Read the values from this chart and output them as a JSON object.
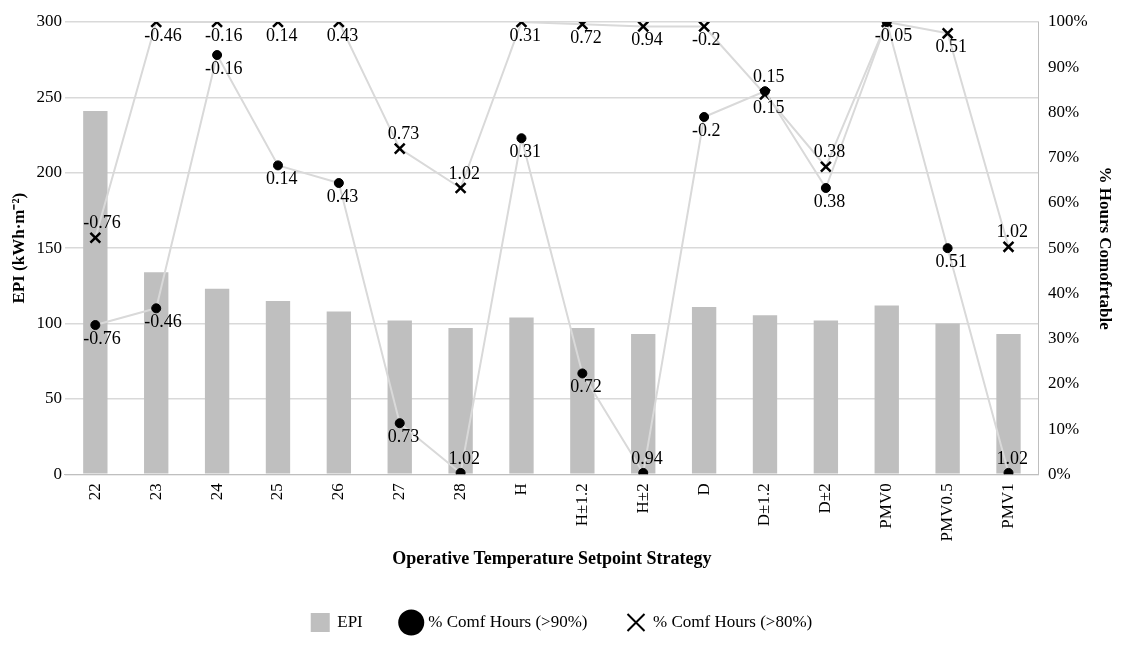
{
  "chart_data": {
    "type": "bar",
    "xlabel": "Operative Temperature Setpoint Strategy",
    "ylabel": "EPI (kWh·m⁻²)",
    "y2label": "% Hours Comofrtable",
    "categories": [
      "22",
      "23",
      "24",
      "25",
      "26",
      "27",
      "28",
      "H",
      "H±1.2",
      "H±2",
      "D",
      "D±1.2",
      "D±2",
      "PMV0",
      "PMV0.5",
      "PMV1"
    ],
    "series": [
      {
        "name": "EPI",
        "color": "#bfbfbf",
        "values": [
          241,
          134,
          123,
          115,
          108,
          102,
          97,
          104,
          97,
          93,
          111,
          105.5,
          102,
          112,
          100,
          93
        ]
      },
      {
        "name": "% Comf Hours (>90%)",
        "type": "line",
        "axis": "y2",
        "marker": "circle",
        "color": "#000000",
        "values": [
          33,
          36.7,
          92.7,
          68.3,
          64.4,
          11.3,
          0.3,
          74.3,
          22.3,
          0.3,
          79,
          84.7,
          63.3,
          100,
          50,
          0.3
        ]
      },
      {
        "name": "% Comf Hours (>80%)",
        "type": "line",
        "axis": "y2",
        "marker": "cross",
        "color": "#000000",
        "values": [
          52.3,
          100,
          100,
          100,
          100,
          72,
          63.3,
          100,
          99.5,
          99,
          99,
          84,
          68,
          100,
          97.5,
          50.3
        ]
      }
    ],
    "annotations": [
      {
        "text": "-0.76",
        "x": "22",
        "y": 99
      },
      {
        "text": "-0.46",
        "x": "23",
        "y": 110
      },
      {
        "text": "-0.16",
        "x": "24",
        "y": 278
      },
      {
        "text": "0.14",
        "x": "25",
        "y": 205
      },
      {
        "text": "0.43",
        "x": "26",
        "y": 193
      },
      {
        "text": "0.73",
        "x": "27",
        "y": 34
      },
      {
        "text": "1.02",
        "x": "28",
        "y": 1
      },
      {
        "text": "0.31",
        "x": "H",
        "y": 223
      },
      {
        "text": "0.72",
        "x": "H±1.2",
        "y": 67
      },
      {
        "text": "0.94",
        "x": "H±2",
        "y": 1
      },
      {
        "text": "-0.2",
        "x": "D",
        "y": 237
      },
      {
        "text": "0.15",
        "x": "D±1.2",
        "y": 254
      },
      {
        "text": "0.38",
        "x": "D±2",
        "y": 190
      },
      {
        "text": "0.51",
        "x": "PMV0.5",
        "y": 150
      },
      {
        "text": "1.02",
        "x": "PMV1",
        "y": 1
      },
      {
        "text": "-0.76",
        "x": "22",
        "y": 157
      },
      {
        "text": "-0.46",
        "x": "23",
        "y": 300
      },
      {
        "text": "-0.16",
        "x": "24",
        "y": 300
      },
      {
        "text": "0.14",
        "x": "25",
        "y": 300
      },
      {
        "text": "0.43",
        "x": "26",
        "y": 300
      },
      {
        "text": "0.73",
        "x": "27",
        "y": 216
      },
      {
        "text": "1.02",
        "x": "28",
        "y": 190
      },
      {
        "text": "0.31",
        "x": "H",
        "y": 300
      },
      {
        "text": "0.72",
        "x": "H±1.2",
        "y": 298.5
      },
      {
        "text": "0.94",
        "x": "H±2",
        "y": 297
      },
      {
        "text": "-0.2",
        "x": "D",
        "y": 297
      },
      {
        "text": "0.15",
        "x": "D±1.2",
        "y": 252
      },
      {
        "text": "0.38",
        "x": "D±2",
        "y": 204
      },
      {
        "text": "-0.05",
        "x": "PMV0",
        "y": 300
      },
      {
        "text": "0.51",
        "x": "PMV0.5",
        "y": 292.5
      },
      {
        "text": "1.02",
        "x": "PMV1",
        "y": 151
      }
    ],
    "ylim": [
      0,
      300
    ],
    "yticks": [
      0,
      50,
      100,
      150,
      200,
      250,
      300
    ],
    "y2lim": [
      0,
      100
    ],
    "y2ticks": [
      {
        "value": 0,
        "label": "0%"
      },
      {
        "value": 10,
        "label": "10%"
      },
      {
        "value": 20,
        "label": "20%"
      },
      {
        "value": 30,
        "label": "30%"
      },
      {
        "value": 40,
        "label": "40%"
      },
      {
        "value": 50,
        "label": "50%"
      },
      {
        "value": 60,
        "label": "60%"
      },
      {
        "value": 70,
        "label": "70%"
      },
      {
        "value": 80,
        "label": "80%"
      },
      {
        "value": 90,
        "label": "90%"
      },
      {
        "value": 100,
        "label": "100%"
      }
    ],
    "grid": "y",
    "legend": "bottom",
    "line_style": "solid"
  }
}
